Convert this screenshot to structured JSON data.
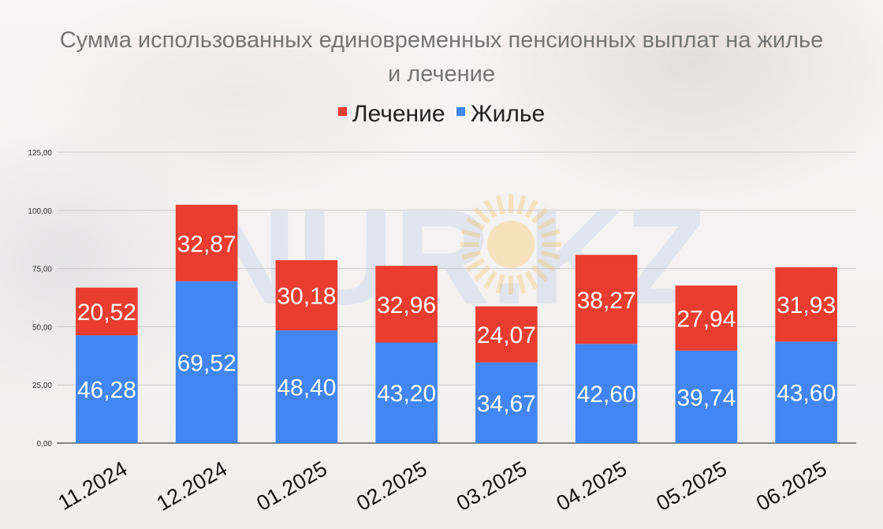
{
  "title_line1": "Сумма использованных единовременных пенсионных выплат на жилье",
  "title_line2": "и лечение",
  "watermark": "NUR.KZ",
  "colors": {
    "treatment": "#ea3d2f",
    "housing": "#4285f4",
    "grid": "#c9c9c9",
    "tick_text": "#333333",
    "data_label": "#ffffff"
  },
  "legend": [
    {
      "name": "Лечение",
      "color": "#ea3d2f"
    },
    {
      "name": "Жилье",
      "color": "#4285f4"
    }
  ],
  "chart_data": {
    "type": "bar",
    "stacked": true,
    "categories": [
      "11.2024",
      "12.2024",
      "01.2025",
      "02.2025",
      "03.2025",
      "04.2025",
      "05.2025",
      "06.2025"
    ],
    "series": [
      {
        "name": "Жилье",
        "values": [
          46.28,
          69.52,
          48.4,
          43.2,
          34.67,
          42.6,
          39.74,
          43.6
        ],
        "labels": [
          "46,28",
          "69,52",
          "48,40",
          "43,20",
          "34,67",
          "42,60",
          "39,74",
          "43,60"
        ]
      },
      {
        "name": "Лечение",
        "values": [
          20.52,
          32.87,
          30.18,
          32.96,
          24.07,
          38.27,
          27.94,
          31.93
        ],
        "labels": [
          "20,52",
          "32,87",
          "30,18",
          "32,96",
          "24,07",
          "38,27",
          "27,94",
          "31,93"
        ]
      }
    ],
    "ylim": [
      0,
      125
    ],
    "yticks": [
      0,
      25,
      50,
      75,
      100,
      125
    ],
    "ytick_labels": [
      "0,00",
      "25,00",
      "50,00",
      "75,00",
      "100,00",
      "125,00"
    ],
    "grid": true,
    "legend_position": "top-center"
  }
}
